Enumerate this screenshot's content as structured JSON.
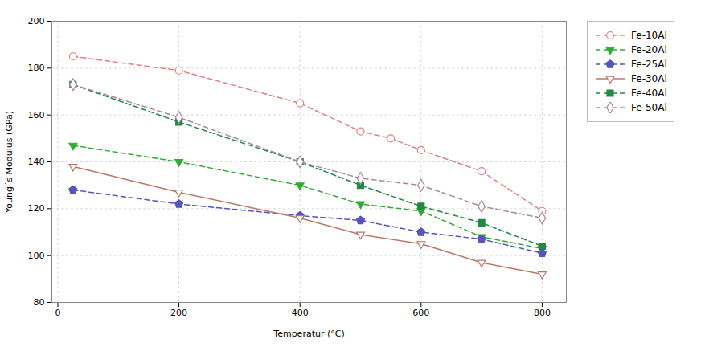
{
  "chart_data": {
    "type": "line",
    "xlabel": "Temperatur (°C)",
    "ylabel": "Young´s Modulus (GPa)",
    "xlim": [
      -10,
      840
    ],
    "ylim": [
      80,
      200
    ],
    "xticks": [
      0,
      200,
      400,
      600,
      800
    ],
    "yticks": [
      80,
      100,
      120,
      140,
      160,
      180,
      200
    ],
    "grid": true,
    "legend": "right",
    "series": [
      {
        "name": "Fe-10Al",
        "color": "#e08080",
        "marker": "circle-open",
        "line_style": "dashed",
        "x": [
          25,
          200,
          400,
          500,
          550,
          600,
          700,
          800
        ],
        "values": [
          185,
          179,
          165,
          153,
          150,
          145,
          136,
          119
        ]
      },
      {
        "name": "Fe-20Al",
        "color": "#33aa33",
        "marker": "triangle-down",
        "line_style": "dashed",
        "x": [
          25,
          200,
          400,
          500,
          600,
          700,
          800
        ],
        "values": [
          147,
          140,
          130,
          122,
          119,
          108,
          103
        ]
      },
      {
        "name": "Fe-25Al",
        "color": "#5555bb",
        "marker": "pentagon",
        "line_style": "dashed",
        "x": [
          25,
          200,
          400,
          500,
          600,
          700,
          800
        ],
        "values": [
          128,
          122,
          117,
          115,
          110,
          107,
          101
        ]
      },
      {
        "name": "Fe-30Al",
        "color": "#bb7766",
        "marker": "triangle-down-open",
        "line_style": "solid",
        "x": [
          25,
          200,
          400,
          500,
          600,
          700,
          800
        ],
        "values": [
          138,
          127,
          116,
          109,
          105,
          97,
          92
        ]
      },
      {
        "name": "Fe-40Al",
        "color": "#228844",
        "marker": "square",
        "line_style": "dashed",
        "x": [
          25,
          200,
          400,
          500,
          600,
          700,
          800
        ],
        "values": [
          173,
          157,
          140,
          130,
          121,
          114,
          104
        ]
      },
      {
        "name": "Fe-50Al",
        "color": "#aa8899",
        "marker": "diamond-open",
        "line_style": "dashed",
        "x": [
          25,
          200,
          400,
          500,
          600,
          700,
          800
        ],
        "values": [
          173,
          159,
          140,
          133,
          130,
          121,
          116
        ]
      }
    ]
  }
}
